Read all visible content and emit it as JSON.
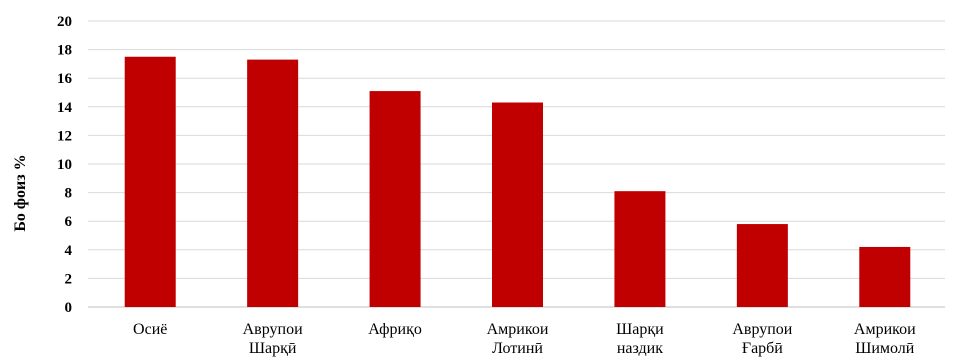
{
  "chart_data": {
    "type": "bar",
    "categories": [
      [
        "Осиё"
      ],
      [
        "Аврупои",
        "Шарқӣ"
      ],
      [
        "Африқо"
      ],
      [
        "Амрикои",
        "Лотинӣ"
      ],
      [
        "Шарқи",
        "наздик"
      ],
      [
        "Аврупои",
        "Ғарбӣ"
      ],
      [
        "Амрикои",
        "Шимолӣ"
      ]
    ],
    "values": [
      17.5,
      17.3,
      15.1,
      14.3,
      8.1,
      5.8,
      4.2
    ],
    "ylabel": "Бо фоиз %",
    "ylim": [
      0,
      20
    ],
    "yticks": [
      0,
      2,
      4,
      6,
      8,
      10,
      12,
      14,
      16,
      18,
      20
    ],
    "grid": true,
    "bar_color": "#c00000"
  }
}
